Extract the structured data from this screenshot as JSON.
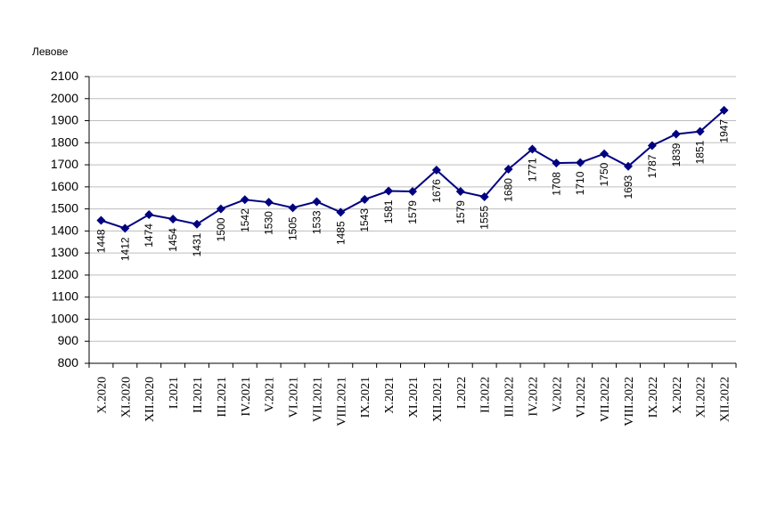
{
  "chart_data": {
    "type": "line",
    "y_axis_label": "Левове",
    "categories": [
      "X.2020",
      "XI.2020",
      "XII.2020",
      "I.2021",
      "II.2021",
      "III.2021",
      "IV.2021",
      "V.2021",
      "VI.2021",
      "VII.2021",
      "VIII.2021",
      "IX.2021",
      "X.2021",
      "XI.2021",
      "XII.2021",
      "I.2022",
      "II.2022",
      "III.2022",
      "IV.2022",
      "V.2022",
      "VI.2022",
      "VII.2022",
      "VIII.2022",
      "IX.2022",
      "X.2022",
      "XI.2022",
      "XII.2022"
    ],
    "values": [
      1448,
      1412,
      1474,
      1454,
      1431,
      1500,
      1542,
      1530,
      1505,
      1533,
      1485,
      1543,
      1581,
      1579,
      1676,
      1579,
      1555,
      1680,
      1771,
      1708,
      1710,
      1750,
      1693,
      1787,
      1839,
      1851,
      1947
    ],
    "color": "#000080",
    "ylim": [
      800,
      2100
    ],
    "yticks": [
      800,
      900,
      1000,
      1100,
      1200,
      1300,
      1400,
      1500,
      1600,
      1700,
      1800,
      1900,
      2000,
      2100
    ],
    "grid": true
  }
}
